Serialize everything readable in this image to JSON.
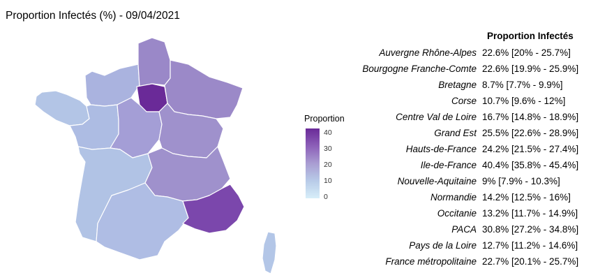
{
  "title": "Proportion Infectés (%) - 09/04/2021",
  "legend": {
    "title": "Proportion",
    "ticks": [
      "40",
      "30",
      "20",
      "10",
      "0"
    ],
    "scale_min": 0,
    "scale_max": 44,
    "colors": {
      "low": "#d7eef9",
      "high": "#6a2a98"
    }
  },
  "table": {
    "header": "Proportion Infectés",
    "rows": [
      {
        "region": "Auvergne  Rhône-Alpes",
        "value": "22.6% [20% - 25.7%]"
      },
      {
        "region": "Bourgogne Franche-Comte",
        "value": "22.6% [19.9% - 25.9%]"
      },
      {
        "region": "Bretagne",
        "value": "8.7% [7.7% - 9.9%]"
      },
      {
        "region": "Corse",
        "value": "10.7% [9.6% - 12%]"
      },
      {
        "region": "Centre Val de Loire",
        "value": "16.7% [14.8% - 18.9%]"
      },
      {
        "region": "Grand Est",
        "value": "25.5% [22.6% - 28.9%]"
      },
      {
        "region": "Hauts-de-France",
        "value": "24.2% [21.5% - 27.4%]"
      },
      {
        "region": "Ile-de-France",
        "value": "40.4% [35.8% - 45.4%]"
      },
      {
        "region": "Nouvelle-Aquitaine",
        "value": "9% [7.9% - 10.3%]"
      },
      {
        "region": "Normandie",
        "value": "14.2% [12.5% - 16%]"
      },
      {
        "region": "Occitanie",
        "value": "13.2% [11.7% - 14.9%]"
      },
      {
        "region": "PACA",
        "value": "30.8% [27.2% - 34.8%]"
      },
      {
        "region": "Pays de la Loire",
        "value": "12.7% [11.2% - 14.6%]"
      },
      {
        "region": "France métropolitaine",
        "value": "22.7% [20.1% - 25.7%]"
      }
    ]
  }
}
